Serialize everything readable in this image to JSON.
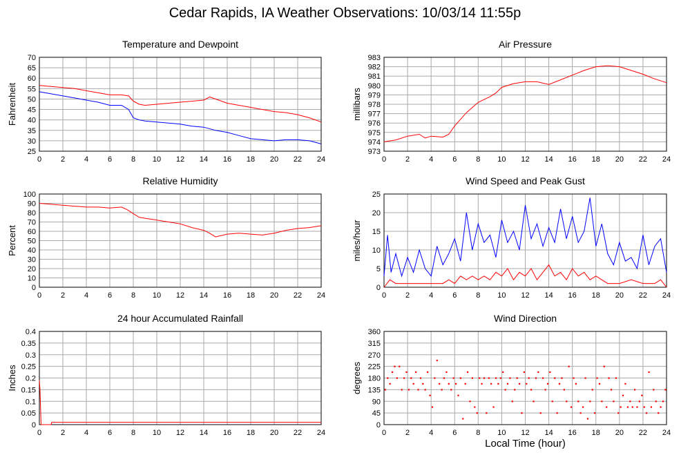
{
  "title": "Cedar Rapids, IA Weather Observations: 10/03/14 11:55p",
  "xlabel": "Local Time (hour)",
  "colors": {
    "red": "#ff0000",
    "blue": "#0000ff",
    "grid": "#a9a9a9"
  },
  "chart_data": [
    {
      "type": "line",
      "title": "Temperature and Dewpoint",
      "ylabel": "Fahrenheit",
      "xlim": [
        0,
        24
      ],
      "ylim": [
        25,
        70
      ],
      "xticks": [
        0,
        2,
        4,
        6,
        8,
        10,
        12,
        14,
        16,
        18,
        20,
        22,
        24
      ],
      "yticks": [
        25,
        30,
        35,
        40,
        45,
        50,
        55,
        60,
        65,
        70
      ],
      "grid": true,
      "series": [
        {
          "color": "#ff0000",
          "x": [
            0,
            1,
            2,
            3,
            4,
            5,
            6,
            7,
            7.6,
            8,
            8.5,
            9,
            10,
            11,
            12,
            13,
            14,
            14.5,
            15,
            16,
            17,
            18,
            19,
            20,
            21,
            22,
            23,
            24
          ],
          "y": [
            56.5,
            56,
            55.5,
            55,
            54,
            53,
            52,
            52,
            51.5,
            49,
            47.5,
            47,
            47.5,
            48,
            48.5,
            49,
            49.5,
            51,
            50,
            48,
            47,
            46,
            45,
            44,
            43.5,
            42.5,
            41,
            39
          ]
        },
        {
          "color": "#0000ff",
          "x": [
            0,
            1,
            2,
            3,
            4,
            5,
            6,
            7,
            7.6,
            8,
            8.5,
            9,
            10,
            11,
            12,
            13,
            14,
            15,
            16,
            17,
            18,
            19,
            20,
            21,
            22,
            23,
            24
          ],
          "y": [
            53.5,
            52.5,
            51.5,
            50.5,
            49.5,
            48.5,
            47,
            47,
            45,
            41,
            40,
            39.5,
            39,
            38.5,
            38,
            37,
            36.5,
            35,
            34,
            32.5,
            31,
            30.5,
            30,
            30.5,
            30.5,
            30,
            28.5
          ]
        }
      ]
    },
    {
      "type": "line",
      "title": "Air Pressure",
      "ylabel": "millibars",
      "xlim": [
        0,
        24
      ],
      "ylim": [
        973,
        983
      ],
      "xticks": [
        0,
        2,
        4,
        6,
        8,
        10,
        12,
        14,
        16,
        18,
        20,
        22,
        24
      ],
      "yticks": [
        973,
        974,
        975,
        976,
        977,
        978,
        979,
        980,
        981,
        982,
        983
      ],
      "grid": true,
      "series": [
        {
          "color": "#ff0000",
          "x": [
            0,
            1,
            2,
            3,
            3.5,
            4,
            5,
            5.5,
            6,
            7,
            8,
            9,
            9.5,
            10,
            11,
            12,
            13,
            14,
            15,
            16,
            17,
            18,
            19,
            20,
            21,
            22,
            23,
            24
          ],
          "y": [
            974,
            974.2,
            974.6,
            974.8,
            974.4,
            974.6,
            974.5,
            974.8,
            975.7,
            977.1,
            978.2,
            978.8,
            979.2,
            979.8,
            980.2,
            980.4,
            980.4,
            980.1,
            980.6,
            981.1,
            981.6,
            982,
            982.1,
            982,
            981.6,
            981.2,
            980.7,
            980.3
          ]
        }
      ]
    },
    {
      "type": "line",
      "title": "Relative Humidity",
      "ylabel": "Percent",
      "xlim": [
        0,
        24
      ],
      "ylim": [
        0,
        100
      ],
      "xticks": [
        0,
        2,
        4,
        6,
        8,
        10,
        12,
        14,
        16,
        18,
        20,
        22,
        24
      ],
      "yticks": [
        0,
        10,
        20,
        30,
        40,
        50,
        60,
        70,
        80,
        90,
        100
      ],
      "grid": true,
      "series": [
        {
          "color": "#ff0000",
          "x": [
            0,
            1,
            2,
            3,
            4,
            5,
            6,
            7,
            7.5,
            8,
            8.5,
            9,
            10,
            11,
            12,
            13,
            14,
            14.5,
            15,
            16,
            17,
            18,
            19,
            20,
            21,
            22,
            23,
            24
          ],
          "y": [
            90,
            89,
            88,
            87,
            86,
            86,
            85,
            86,
            83,
            79,
            75,
            74,
            72,
            70,
            68,
            64,
            61,
            58,
            54,
            57,
            58,
            57,
            56,
            58,
            61,
            63,
            64,
            66
          ]
        }
      ]
    },
    {
      "type": "line",
      "title": "Wind Speed and Peak Gust",
      "ylabel": "miles/hour",
      "xlim": [
        0,
        24
      ],
      "ylim": [
        0,
        25
      ],
      "xticks": [
        0,
        2,
        4,
        6,
        8,
        10,
        12,
        14,
        16,
        18,
        20,
        22,
        24
      ],
      "yticks": [
        0,
        5,
        10,
        15,
        20,
        25
      ],
      "grid": true,
      "series": [
        {
          "color": "#0000ff",
          "x": [
            0,
            0.3,
            0.6,
            1,
            1.5,
            2,
            2.5,
            3,
            3.5,
            4,
            4.5,
            5,
            5.5,
            6,
            6.5,
            7,
            7.5,
            8,
            8.5,
            9,
            9.5,
            10,
            10.5,
            11,
            11.5,
            12,
            12.5,
            13,
            13.5,
            14,
            14.5,
            15,
            15.5,
            16,
            16.5,
            17,
            17.5,
            18,
            18.5,
            19,
            19.5,
            20,
            20.5,
            21,
            21.5,
            22,
            22.5,
            23,
            23.5,
            24
          ],
          "y": [
            3,
            14,
            4,
            9,
            3,
            8,
            4,
            10,
            5,
            3,
            11,
            6,
            9,
            13,
            7,
            20,
            10,
            17,
            12,
            14,
            8,
            18,
            12,
            15,
            10,
            22,
            13,
            17,
            11,
            16,
            12,
            21,
            13,
            19,
            12,
            15,
            24,
            11,
            17,
            9,
            6,
            12,
            7,
            8,
            5,
            14,
            6,
            11,
            13,
            4
          ]
        },
        {
          "color": "#ff0000",
          "x": [
            0,
            0.5,
            1,
            2,
            3,
            4,
            5,
            5.5,
            6,
            6.5,
            7,
            7.5,
            8,
            8.5,
            9,
            9.5,
            10,
            10.5,
            11,
            11.5,
            12,
            12.5,
            13,
            13.5,
            14,
            14.5,
            15,
            15.5,
            16,
            16.5,
            17,
            17.5,
            18,
            18.5,
            19,
            20,
            21,
            22,
            23,
            23.5,
            24
          ],
          "y": [
            0,
            2,
            1,
            1,
            1,
            1,
            1,
            2,
            1,
            3,
            2,
            3,
            2,
            3,
            2,
            4,
            3,
            5,
            2,
            4,
            3,
            5,
            2,
            4,
            6,
            3,
            4,
            2,
            5,
            3,
            4,
            2,
            3,
            2,
            1,
            1,
            2,
            1,
            1,
            2,
            0
          ]
        }
      ]
    },
    {
      "type": "line",
      "title": "24 hour Accumulated Rainfall",
      "ylabel": "Inches",
      "xlim": [
        0,
        24
      ],
      "ylim": [
        0,
        0.4
      ],
      "xticks": [
        0,
        2,
        4,
        6,
        8,
        10,
        12,
        14,
        16,
        18,
        20,
        22,
        24
      ],
      "yticks": [
        0,
        0.05,
        0.1,
        0.15,
        0.2,
        0.25,
        0.3,
        0.35,
        0.4
      ],
      "grid": true,
      "series": [
        {
          "color": "#ff0000",
          "x": [
            0,
            0.05,
            0.15,
            1,
            1.05,
            24
          ],
          "y": [
            0.19,
            0.15,
            0,
            0,
            0.01,
            0.01
          ]
        }
      ]
    },
    {
      "type": "scatter",
      "title": "Wind Direction",
      "ylabel": "degrees",
      "xlim": [
        0,
        24
      ],
      "ylim": [
        0,
        360
      ],
      "xticks": [
        0,
        2,
        4,
        6,
        8,
        10,
        12,
        14,
        16,
        18,
        20,
        22,
        24
      ],
      "yticks": [
        0,
        45,
        90,
        135,
        180,
        225,
        270,
        315,
        360
      ],
      "grid": true,
      "series": [
        {
          "color": "#ff0000",
          "x": [
            0.1,
            0.3,
            0.5,
            0.7,
            0.9,
            1.1,
            1.3,
            1.5,
            1.7,
            1.9,
            2.1,
            2.3,
            2.5,
            2.7,
            2.9,
            3.1,
            3.3,
            3.5,
            3.7,
            3.9,
            4.1,
            4.3,
            4.5,
            4.7,
            4.9,
            5.1,
            5.3,
            5.5,
            5.7,
            5.9,
            6.1,
            6.3,
            6.5,
            6.7,
            6.9,
            7.1,
            7.3,
            7.5,
            7.7,
            7.9,
            8.1,
            8.3,
            8.5,
            8.7,
            8.9,
            9.1,
            9.3,
            9.5,
            9.7,
            9.9,
            10.1,
            10.3,
            10.5,
            10.7,
            10.9,
            11.1,
            11.3,
            11.5,
            11.7,
            11.9,
            12.1,
            12.3,
            12.5,
            12.7,
            12.9,
            13.1,
            13.3,
            13.5,
            13.7,
            13.9,
            14.1,
            14.3,
            14.5,
            14.7,
            14.9,
            15.1,
            15.3,
            15.5,
            15.7,
            15.9,
            16.1,
            16.3,
            16.5,
            16.7,
            16.9,
            17.1,
            17.3,
            17.5,
            17.7,
            17.9,
            18.1,
            18.3,
            18.5,
            18.7,
            18.9,
            19.1,
            19.3,
            19.5,
            19.7,
            19.9,
            20.1,
            20.3,
            20.5,
            20.7,
            20.9,
            21.1,
            21.3,
            21.5,
            21.7,
            21.9,
            22.1,
            22.3,
            22.5,
            22.7,
            22.9,
            23.1,
            23.3,
            23.5,
            23.7,
            23.9
          ],
          "y": [
            135,
            180,
            158,
            203,
            225,
            180,
            225,
            135,
            180,
            203,
            135,
            180,
            158,
            203,
            135,
            180,
            158,
            135,
            203,
            113,
            68,
            180,
            248,
            158,
            135,
            180,
            203,
            158,
            135,
            180,
            158,
            113,
            180,
            23,
            158,
            203,
            90,
            180,
            68,
            45,
            180,
            158,
            180,
            45,
            180,
            158,
            68,
            180,
            158,
            180,
            203,
            135,
            158,
            180,
            90,
            135,
            180,
            158,
            45,
            203,
            158,
            180,
            135,
            90,
            180,
            203,
            45,
            180,
            135,
            158,
            203,
            90,
            180,
            45,
            158,
            180,
            135,
            90,
            225,
            68,
            180,
            158,
            90,
            45,
            68,
            180,
            23,
            90,
            135,
            45,
            180,
            158,
            90,
            225,
            68,
            180,
            135,
            90,
            180,
            45,
            68,
            113,
            158,
            68,
            90,
            68,
            135,
            68,
            90,
            113,
            68,
            45,
            203,
            68,
            135,
            90,
            45,
            68,
            90,
            135
          ]
        }
      ]
    }
  ]
}
